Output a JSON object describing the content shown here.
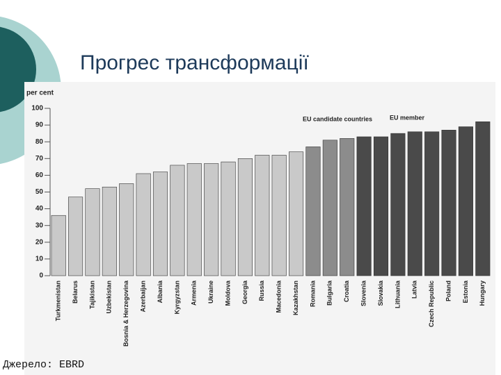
{
  "slide": {
    "title": "Прогрес трансформації",
    "source": "Джерело: EBRD"
  },
  "chart_data": {
    "type": "bar",
    "y_label": "per cent",
    "categories": [
      "Turkmenistan",
      "Belarus",
      "Tajikistan",
      "Uzbekistan",
      "Bosnia & Herzegovina",
      "Azerbaijan",
      "Albania",
      "Kyrgyzstan",
      "Armenia",
      "Ukraine",
      "Moldova",
      "Georgia",
      "Russia",
      "Macedonia",
      "Kazakhstan",
      "Romania",
      "Bulgaria",
      "Croatia",
      "Slovenia",
      "Slovakia",
      "Lithuania",
      "Latvia",
      "Czech Republic",
      "Poland",
      "Estonia",
      "Hungary"
    ],
    "values": [
      36,
      47,
      52,
      53,
      55,
      61,
      62,
      66,
      67,
      67,
      68,
      70,
      72,
      72,
      74,
      77,
      81,
      82,
      83,
      83,
      85,
      86,
      86,
      87,
      89,
      92
    ],
    "colors": [
      "#c9c9c9",
      "#c9c9c9",
      "#c9c9c9",
      "#c9c9c9",
      "#c9c9c9",
      "#c9c9c9",
      "#c9c9c9",
      "#c9c9c9",
      "#c9c9c9",
      "#c9c9c9",
      "#c9c9c9",
      "#c9c9c9",
      "#c9c9c9",
      "#c9c9c9",
      "#c9c9c9",
      "#8c8c8c",
      "#8c8c8c",
      "#8c8c8c",
      "#4a4a4a",
      "#4a4a4a",
      "#4a4a4a",
      "#4a4a4a",
      "#4a4a4a",
      "#4a4a4a",
      "#4a4a4a",
      "#4a4a4a"
    ],
    "annotations": [
      "EU candidate countries",
      "EU member"
    ],
    "ylim": [
      0,
      100
    ],
    "yticks": [
      0,
      10,
      20,
      30,
      40,
      50,
      60,
      70,
      80,
      90,
      100
    ]
  }
}
